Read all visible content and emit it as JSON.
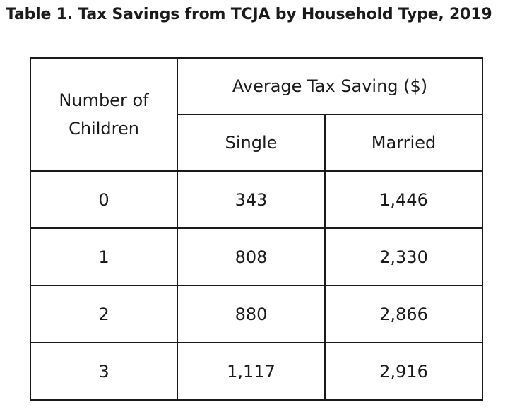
{
  "title": "Table 1. Tax Savings from TCJA by Household Type, 2019",
  "table": {
    "row_header": "Number of Children",
    "row_header_line1": "Number of",
    "row_header_line2": "Children",
    "group_header": "Average Tax Saving ($)",
    "columns": [
      "Single",
      "Married"
    ],
    "rows": [
      {
        "children": "0",
        "single": "343",
        "married": "1,446"
      },
      {
        "children": "1",
        "single": "808",
        "married": "2,330"
      },
      {
        "children": "2",
        "single": "880",
        "married": "2,866"
      },
      {
        "children": "3",
        "single": "1,117",
        "married": "2,916"
      }
    ]
  }
}
